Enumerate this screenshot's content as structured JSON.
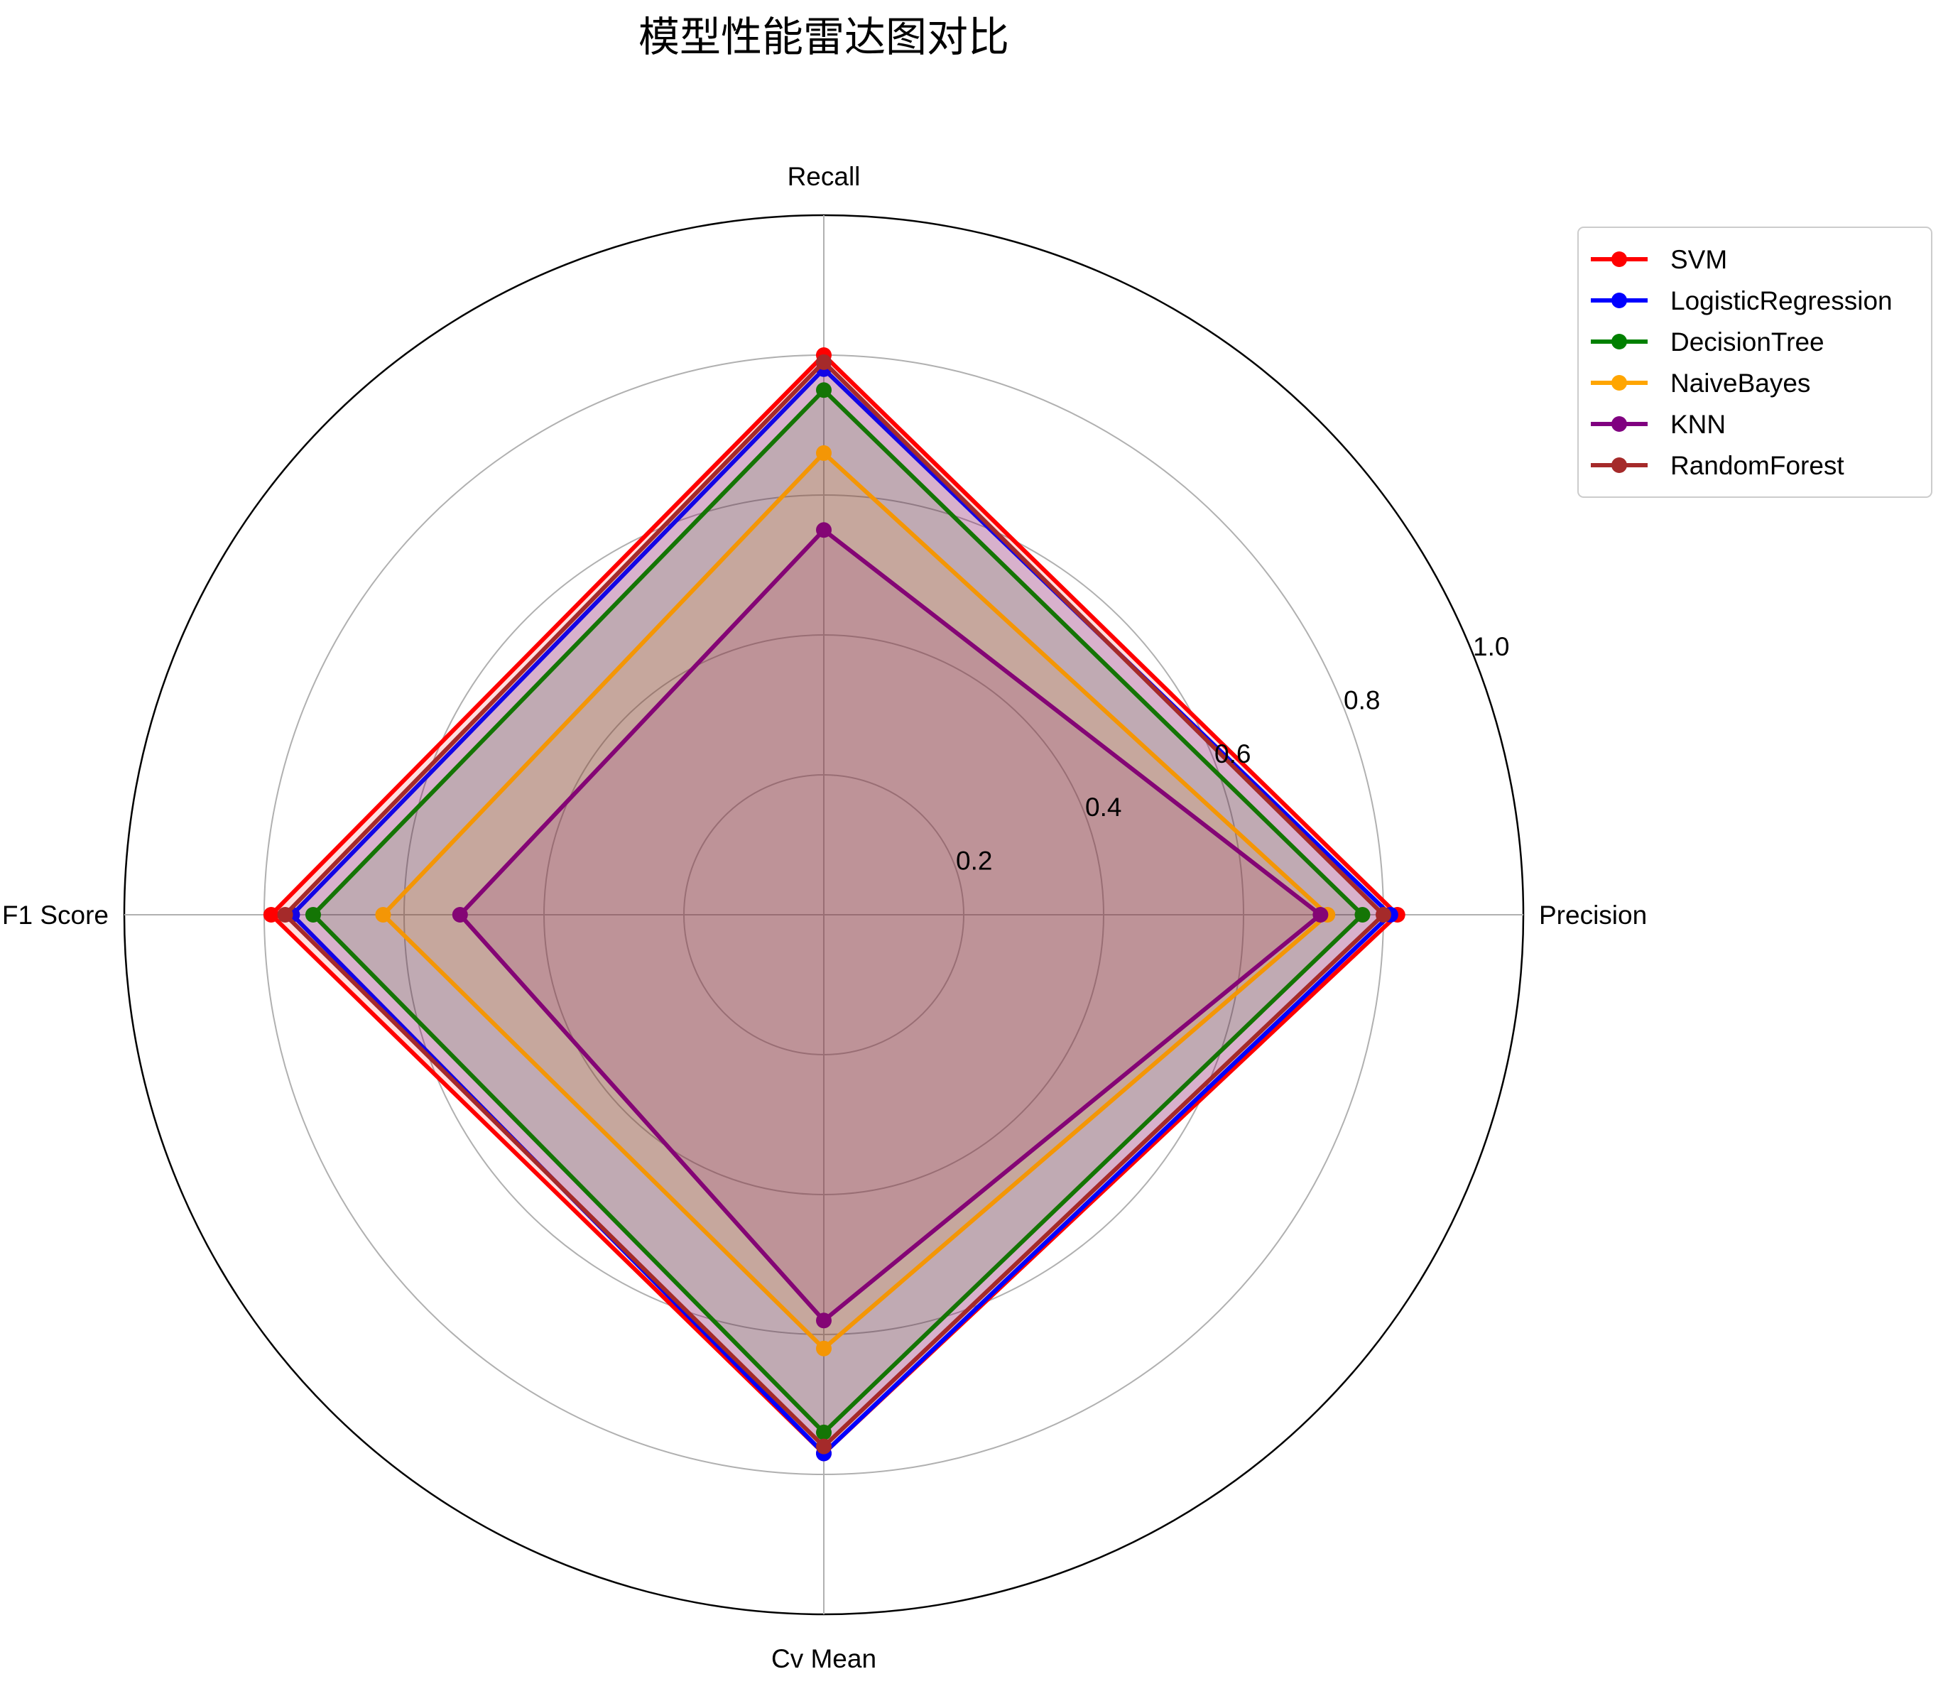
{
  "chart_data": {
    "type": "radar",
    "title": "模型性能雷达图对比",
    "axes": [
      "Precision",
      "Recall",
      "F1 Score",
      "Cv Mean"
    ],
    "rlim": [
      0,
      1.0
    ],
    "r_ticks": [
      "0.2",
      "0.4",
      "0.6",
      "0.8",
      "1.0"
    ],
    "r_tick_values": [
      0.2,
      0.4,
      0.6,
      0.8,
      1.0
    ],
    "grid": true,
    "legend_position": "top-right",
    "series": [
      {
        "name": "SVM",
        "color": "#ff0000",
        "values": [
          0.82,
          0.8,
          0.79,
          0.77
        ]
      },
      {
        "name": "LogisticRegression",
        "color": "#0000ff",
        "values": [
          0.81,
          0.78,
          0.76,
          0.77
        ]
      },
      {
        "name": "DecisionTree",
        "color": "#008000",
        "values": [
          0.77,
          0.75,
          0.73,
          0.74
        ]
      },
      {
        "name": "NaiveBayes",
        "color": "#ffa500",
        "values": [
          0.72,
          0.66,
          0.63,
          0.62
        ]
      },
      {
        "name": "KNN",
        "color": "#800080",
        "values": [
          0.71,
          0.55,
          0.52,
          0.58
        ]
      },
      {
        "name": "RandomForest",
        "color": "#a52a2a",
        "values": [
          0.8,
          0.79,
          0.77,
          0.76
        ]
      }
    ]
  }
}
